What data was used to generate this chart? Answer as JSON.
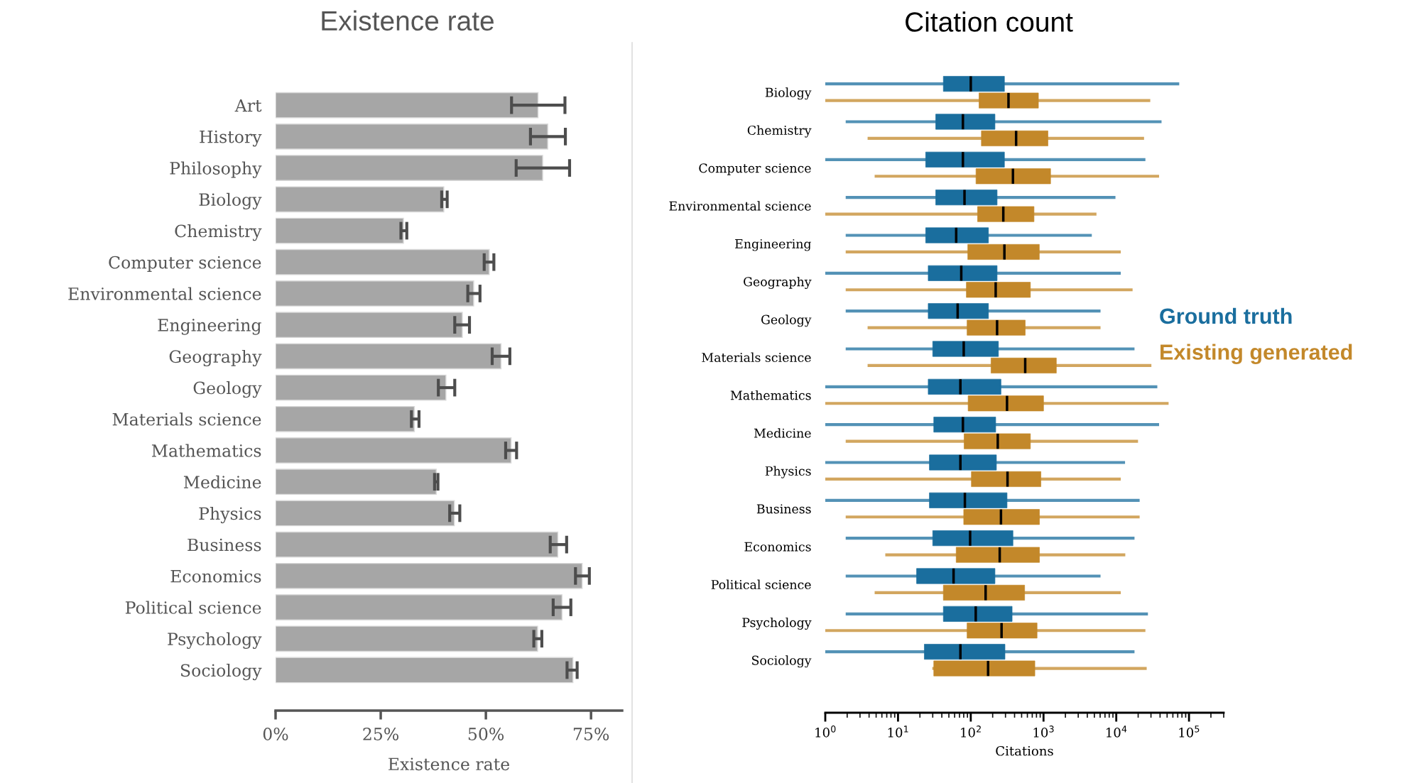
{
  "chart_data": [
    {
      "type": "bar",
      "orientation": "horizontal",
      "title": "Existence rate",
      "xlabel": "Existence rate",
      "categories": [
        "Art",
        "History",
        "Philosophy",
        "Biology",
        "Chemistry",
        "Computer science",
        "Environmental science",
        "Engineering",
        "Geography",
        "Geology",
        "Materials science",
        "Mathematics",
        "Medicine",
        "Physics",
        "Business",
        "Economics",
        "Political science",
        "Psychology",
        "Sociology"
      ],
      "values": [
        62.4,
        64.7,
        63.5,
        40.0,
        30.4,
        50.8,
        47.1,
        44.4,
        53.6,
        40.5,
        33.0,
        56.0,
        38.2,
        42.5,
        67.1,
        72.9,
        68.1,
        62.3,
        70.7
      ],
      "errors": [
        [
          56.1,
          68.8
        ],
        [
          60.6,
          68.9
        ],
        [
          57.2,
          69.9
        ],
        [
          39.5,
          40.8
        ],
        [
          29.8,
          31.2
        ],
        [
          49.6,
          51.9
        ],
        [
          45.7,
          48.6
        ],
        [
          42.6,
          46.1
        ],
        [
          51.5,
          55.7
        ],
        [
          38.7,
          42.6
        ],
        [
          32.3,
          34.1
        ],
        [
          54.7,
          57.3
        ],
        [
          37.8,
          38.6
        ],
        [
          41.4,
          43.8
        ],
        [
          65.3,
          69.2
        ],
        [
          71.3,
          74.6
        ],
        [
          66.0,
          70.2
        ],
        [
          61.4,
          63.3
        ],
        [
          69.3,
          71.7
        ]
      ],
      "color": "#a6a6a6",
      "xlim": [
        0,
        82.4
      ],
      "xticks": [
        {
          "value": 0,
          "label": "0%"
        },
        {
          "value": 25,
          "label": "25%"
        },
        {
          "value": 50,
          "label": "50%"
        },
        {
          "value": 75,
          "label": "75%"
        }
      ],
      "grid": false
    },
    {
      "type": "box",
      "orientation": "horizontal",
      "title": "Citation count",
      "xlabel": "Citations",
      "log": "x",
      "categories": [
        "Biology",
        "Chemistry",
        "Computer science",
        "Environmental science",
        "Engineering",
        "Geography",
        "Geology",
        "Materials science",
        "Mathematics",
        "Medicine",
        "Physics",
        "Business",
        "Economics",
        "Political science",
        "Psychology",
        "Sociology"
      ],
      "series": [
        {
          "name": "Ground truth",
          "color": "#1a6e9e",
          "boxes": [
            {
              "low": 1,
              "q1": 42,
              "median": 100,
              "q3": 290,
              "high": 70000
            },
            {
              "low": 2,
              "q1": 33,
              "median": 78,
              "q3": 215,
              "high": 40000
            },
            {
              "low": 1,
              "q1": 24,
              "median": 78,
              "q3": 290,
              "high": 24000
            },
            {
              "low": 2,
              "q1": 33,
              "median": 82,
              "q3": 230,
              "high": 9300
            },
            {
              "low": 2,
              "q1": 24,
              "median": 63,
              "q3": 175,
              "high": 4400
            },
            {
              "low": 1,
              "q1": 26,
              "median": 74,
              "q3": 230,
              "high": 11000
            },
            {
              "low": 2,
              "q1": 26,
              "median": 66,
              "q3": 175,
              "high": 5800
            },
            {
              "low": 2,
              "q1": 30,
              "median": 80,
              "q3": 240,
              "high": 17000
            },
            {
              "low": 1,
              "q1": 26,
              "median": 72,
              "q3": 260,
              "high": 35000
            },
            {
              "low": 1,
              "q1": 31,
              "median": 78,
              "q3": 220,
              "high": 37000
            },
            {
              "low": 1,
              "q1": 27,
              "median": 72,
              "q3": 225,
              "high": 12600
            },
            {
              "low": 1,
              "q1": 27,
              "median": 83,
              "q3": 315,
              "high": 20000
            },
            {
              "low": 2,
              "q1": 30,
              "median": 98,
              "q3": 380,
              "high": 17000
            },
            {
              "low": 2,
              "q1": 18,
              "median": 58,
              "q3": 215,
              "high": 5800
            },
            {
              "low": 2,
              "q1": 42,
              "median": 117,
              "q3": 370,
              "high": 26000
            },
            {
              "low": 1,
              "q1": 23,
              "median": 72,
              "q3": 295,
              "high": 17000
            }
          ]
        },
        {
          "name": "Existing generated",
          "color": "#c3882a",
          "boxes": [
            {
              "low": 1,
              "q1": 130,
              "median": 330,
              "q3": 850,
              "high": 28000
            },
            {
              "low": 4,
              "q1": 140,
              "median": 420,
              "q3": 1150,
              "high": 23000
            },
            {
              "low": 5,
              "q1": 118,
              "median": 380,
              "q3": 1250,
              "high": 37000
            },
            {
              "low": 1,
              "q1": 124,
              "median": 280,
              "q3": 740,
              "high": 5100
            },
            {
              "low": 2,
              "q1": 91,
              "median": 290,
              "q3": 875,
              "high": 11000
            },
            {
              "low": 2,
              "q1": 87,
              "median": 220,
              "q3": 660,
              "high": 16000
            },
            {
              "low": 4,
              "q1": 89,
              "median": 230,
              "q3": 560,
              "high": 5800
            },
            {
              "low": 4,
              "q1": 190,
              "median": 560,
              "q3": 1500,
              "high": 29000
            },
            {
              "low": 1,
              "q1": 92,
              "median": 315,
              "q3": 1000,
              "high": 50000
            },
            {
              "low": 2,
              "q1": 81,
              "median": 235,
              "q3": 660,
              "high": 19000
            },
            {
              "low": 1,
              "q1": 102,
              "median": 320,
              "q3": 920,
              "high": 11000
            },
            {
              "low": 2,
              "q1": 80,
              "median": 260,
              "q3": 880,
              "high": 20000
            },
            {
              "low": 7,
              "q1": 63,
              "median": 250,
              "q3": 880,
              "high": 12700
            },
            {
              "low": 5,
              "q1": 42,
              "median": 160,
              "q3": 550,
              "high": 11000
            },
            {
              "low": 1,
              "q1": 89,
              "median": 265,
              "q3": 815,
              "high": 24000
            },
            {
              "low": 31,
              "q1": 31,
              "median": 173,
              "q3": 760,
              "high": 25000
            }
          ]
        }
      ],
      "xlim": [
        1,
        300000
      ],
      "xticks": [
        {
          "value": 1,
          "label": "10$^{0}$"
        },
        {
          "value": 10,
          "label": "10$^{1}$"
        },
        {
          "value": 100,
          "label": "10$^{2}$"
        },
        {
          "value": 1000,
          "label": "10$^{3}$"
        },
        {
          "value": 10000,
          "label": "10$^{4}$"
        },
        {
          "value": 100000,
          "label": "10$^{5}$"
        }
      ],
      "grid": false,
      "legend": "right"
    }
  ]
}
